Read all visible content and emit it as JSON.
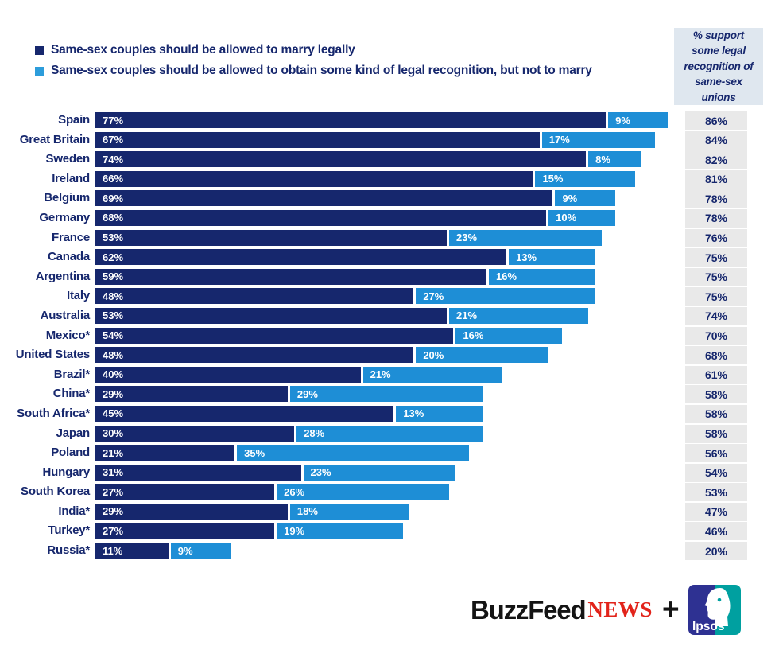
{
  "legend": {
    "items": [
      {
        "label": "Same-sex couples should be allowed to marry legally",
        "color": "#16276d"
      },
      {
        "label": "Same-sex couples should be allowed to obtain some kind of legal recognition, but not to marry",
        "color": "#2d9ddb"
      }
    ]
  },
  "total_header": "% support some legal recognition of same-sex unions",
  "chart_data": {
    "type": "bar",
    "orientation": "horizontal",
    "stacked": true,
    "unit": "%",
    "xlim": [
      0,
      100
    ],
    "categories": [
      "Spain",
      "Great Britain",
      "Sweden",
      "Ireland",
      "Belgium",
      "Germany",
      "France",
      "Canada",
      "Argentina",
      "Italy",
      "Australia",
      "Mexico*",
      "United States",
      "Brazil*",
      "China*",
      "South Africa*",
      "Japan",
      "Poland",
      "Hungary",
      "South Korea",
      "India*",
      "Turkey*",
      "Russia*"
    ],
    "series": [
      {
        "name": "Same-sex couples should be allowed to marry legally",
        "color": "#16276d",
        "values": [
          77,
          67,
          74,
          66,
          69,
          68,
          53,
          62,
          59,
          48,
          53,
          54,
          48,
          40,
          29,
          45,
          30,
          21,
          31,
          27,
          29,
          27,
          11
        ]
      },
      {
        "name": "Same-sex couples should be allowed to obtain some kind of legal recognition, but not to marry",
        "color": "#1e8ed6",
        "values": [
          9,
          17,
          8,
          15,
          9,
          10,
          23,
          13,
          16,
          27,
          21,
          16,
          20,
          21,
          29,
          13,
          28,
          35,
          23,
          26,
          18,
          19,
          9
        ]
      }
    ],
    "totals": [
      86,
      84,
      82,
      81,
      78,
      78,
      76,
      75,
      75,
      75,
      74,
      70,
      68,
      61,
      58,
      58,
      58,
      56,
      54,
      53,
      47,
      46,
      20
    ],
    "totals_column_label": "% support some legal recognition of same-sex unions"
  },
  "footer": {
    "buzzfeed_wordmark": "BuzzFeed",
    "news_wordmark": "NEWS",
    "plus_sign": "+",
    "ipsos_label": "Ipsos"
  },
  "colors": {
    "marry_bar": "#16276d",
    "recognition_bar": "#1e8ed6",
    "label_text": "#16276d",
    "totals_cell_bg": "#e9e9e9",
    "header_box_bg": "#dfe7ef",
    "buzzfeed_black": "#141414",
    "news_red": "#e2231a",
    "ipsos_dark_blue": "#2e3192",
    "ipsos_teal": "#00a0a0"
  }
}
